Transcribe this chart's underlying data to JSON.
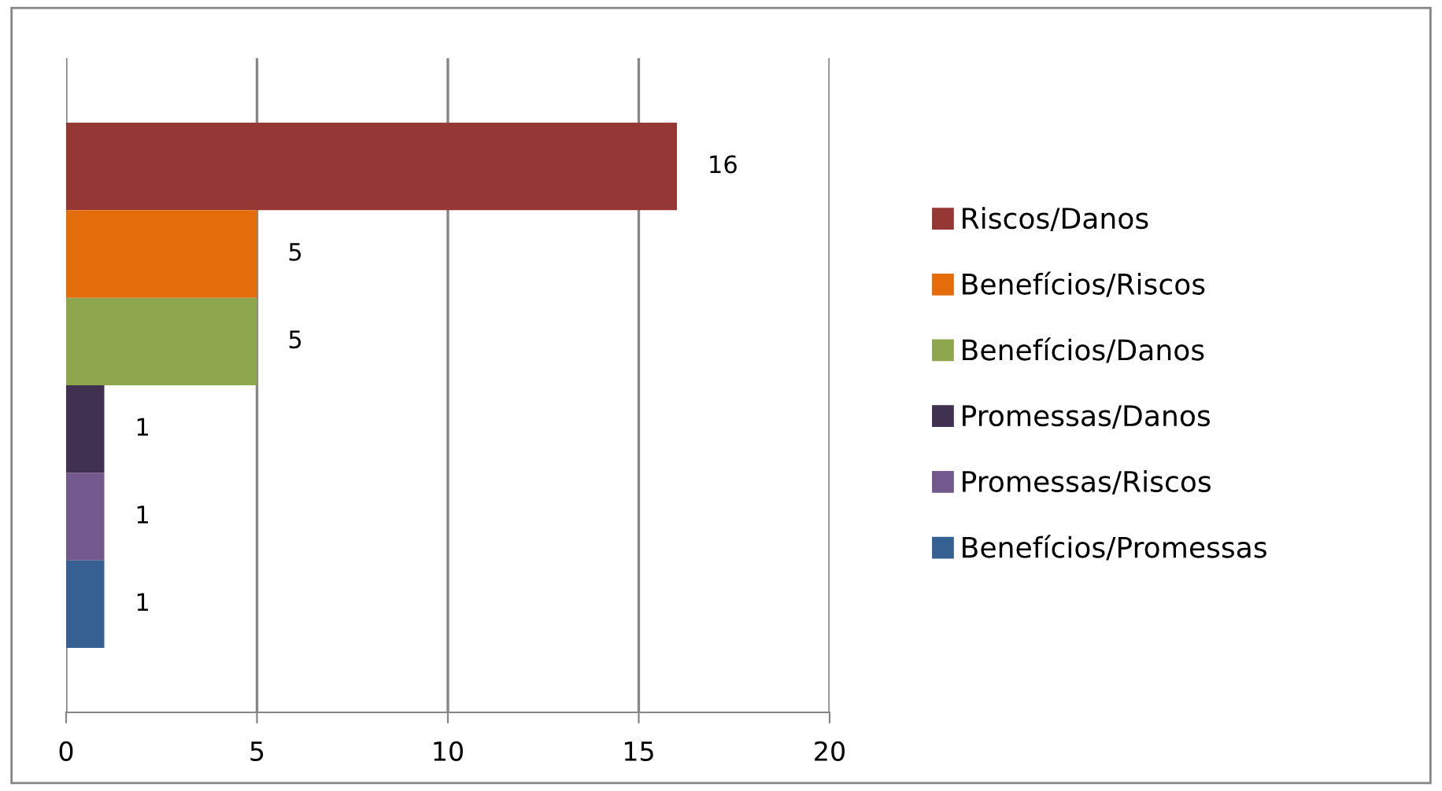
{
  "chart_data": {
    "type": "bar",
    "orientation": "horizontal",
    "categories": [
      null
    ],
    "series": [
      {
        "name": "Riscos/Danos",
        "color": "#953735",
        "values": [
          16
        ]
      },
      {
        "name": "Benefícios/Riscos",
        "color": "#e46c0a",
        "values": [
          5
        ]
      },
      {
        "name": "Benefícios/Danos",
        "color": "#8ea74f",
        "values": [
          5
        ]
      },
      {
        "name": "Promessas/Danos",
        "color": "#403151",
        "values": [
          1
        ]
      },
      {
        "name": "Promessas/Riscos",
        "color": "#73598e",
        "values": [
          1
        ]
      },
      {
        "name": "Benefícios/Promessas",
        "color": "#376092",
        "values": [
          1
        ]
      }
    ],
    "xlim": [
      0,
      20
    ],
    "xticks": [
      0,
      5,
      10,
      15,
      20
    ],
    "grid": "x",
    "legend": "right",
    "data_labels": true
  }
}
